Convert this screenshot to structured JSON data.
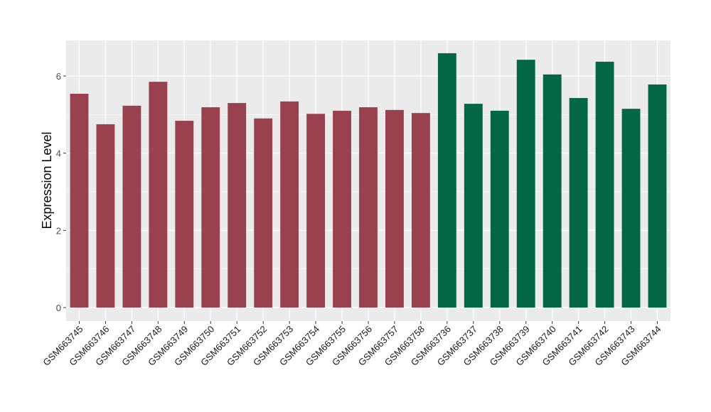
{
  "chart_data": {
    "type": "bar",
    "title": "",
    "xlabel": "",
    "ylabel": "Expression Level",
    "ylim": [
      -0.35,
      6.92
    ],
    "yticks": [
      0,
      2,
      4,
      6
    ],
    "grid": true,
    "categories": [
      "GSM663745",
      "GSM663746",
      "GSM663747",
      "GSM663748",
      "GSM663749",
      "GSM663750",
      "GSM663751",
      "GSM663752",
      "GSM663753",
      "GSM663754",
      "GSM663755",
      "GSM663756",
      "GSM663757",
      "GSM663758",
      "GSM663736",
      "GSM663737",
      "GSM663738",
      "GSM663739",
      "GSM663740",
      "GSM663741",
      "GSM663742",
      "GSM663743",
      "GSM663744"
    ],
    "values": [
      5.54,
      4.75,
      5.23,
      5.85,
      4.84,
      5.19,
      5.3,
      4.9,
      5.34,
      5.02,
      5.1,
      5.19,
      5.12,
      5.04,
      6.59,
      5.28,
      5.1,
      6.42,
      6.04,
      5.43,
      6.37,
      5.15,
      5.78
    ],
    "group_colors": [
      "#9a4150",
      "#9a4150",
      "#9a4150",
      "#9a4150",
      "#9a4150",
      "#9a4150",
      "#9a4150",
      "#9a4150",
      "#9a4150",
      "#9a4150",
      "#9a4150",
      "#9a4150",
      "#9a4150",
      "#9a4150",
      "#036644",
      "#036644",
      "#036644",
      "#036644",
      "#036644",
      "#036644",
      "#036644",
      "#036644",
      "#036644"
    ],
    "panel_background": "#ebebeb"
  }
}
